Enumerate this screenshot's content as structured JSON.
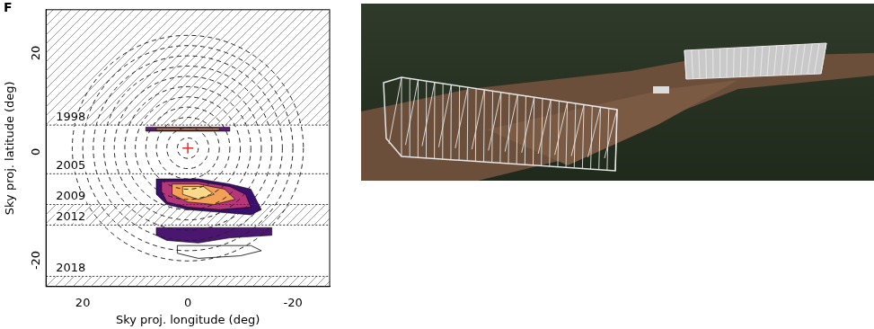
{
  "chart_data": {
    "type": "scatter",
    "title": "F",
    "x_label": "Sky proj. longitude (deg)",
    "y_label": "Sky proj. latitude (deg)",
    "xlim": [
      27,
      -27
    ],
    "ylim": [
      -27,
      27
    ],
    "xticks": [
      20,
      0,
      -20
    ],
    "yticks": [
      -20,
      0,
      20
    ],
    "grid": false,
    "hatched_regions": [
      [
        4.5,
        27
      ],
      [
        -15,
        -11
      ],
      [
        -27,
        -25
      ]
    ],
    "year_lines": [
      {
        "label": "1998",
        "y": 4.5
      },
      {
        "label": "2005",
        "y": -5
      },
      {
        "label": "2009",
        "y": -11
      },
      {
        "label": "2012",
        "y": -15
      },
      {
        "label": "2018",
        "y": -25
      }
    ],
    "circle_radii": [
      2,
      4,
      6,
      8,
      10,
      12,
      14,
      16,
      18,
      20,
      22
    ],
    "center": {
      "x": 0,
      "y": 0,
      "color": "#e03030",
      "marker": "cross"
    },
    "contours": [
      {
        "type": "area",
        "color": "#5b1f6e",
        "points": [
          [
            8,
            3.3
          ],
          [
            -8,
            3.3
          ],
          [
            -8,
            4.1
          ],
          [
            8,
            4.1
          ]
        ]
      },
      {
        "type": "area",
        "color": "#f08a3c",
        "points": [
          [
            6,
            3.5
          ],
          [
            -6,
            3.5
          ],
          [
            -6,
            3.9
          ],
          [
            6,
            3.9
          ]
        ]
      },
      {
        "type": "area",
        "color": "#3b0f70",
        "points": [
          [
            6,
            -6
          ],
          [
            -2,
            -6
          ],
          [
            -8,
            -7
          ],
          [
            -12,
            -8
          ],
          [
            -13,
            -10
          ],
          [
            -14,
            -12
          ],
          [
            -12,
            -13
          ],
          [
            -6,
            -12.5
          ],
          [
            0,
            -12
          ],
          [
            4,
            -11
          ],
          [
            6,
            -9
          ]
        ]
      },
      {
        "type": "area",
        "color": "#b5367a",
        "points": [
          [
            5,
            -6.5
          ],
          [
            -2,
            -6.5
          ],
          [
            -8,
            -7.5
          ],
          [
            -11,
            -9
          ],
          [
            -12,
            -11.5
          ],
          [
            -6,
            -12
          ],
          [
            0,
            -11.5
          ],
          [
            4,
            -10.5
          ],
          [
            5,
            -8.5
          ]
        ]
      },
      {
        "type": "area",
        "color": "#f3a157",
        "points": [
          [
            3,
            -7
          ],
          [
            -2,
            -7
          ],
          [
            -7,
            -8
          ],
          [
            -9,
            -10
          ],
          [
            -5,
            -11
          ],
          [
            0,
            -10.5
          ],
          [
            3,
            -9
          ]
        ]
      },
      {
        "type": "area",
        "color": "#fcd98a",
        "points": [
          [
            1,
            -7.5
          ],
          [
            -3,
            -7.5
          ],
          [
            -5,
            -9
          ],
          [
            -2,
            -10
          ],
          [
            1,
            -9
          ]
        ]
      },
      {
        "type": "area",
        "color": "#4a1670",
        "points": [
          [
            6,
            -15.5
          ],
          [
            -16,
            -15.5
          ],
          [
            -16,
            -17
          ],
          [
            -8,
            -17.5
          ],
          [
            -2,
            -18.5
          ],
          [
            4,
            -18
          ],
          [
            6,
            -17
          ]
        ]
      },
      {
        "type": "line",
        "color": "#000000",
        "points": [
          [
            2,
            -19
          ],
          [
            -12,
            -19
          ],
          [
            -14,
            -20
          ],
          [
            -10,
            -21
          ],
          [
            -2,
            -21.5
          ],
          [
            2,
            -20.5
          ]
        ]
      }
    ]
  }
}
